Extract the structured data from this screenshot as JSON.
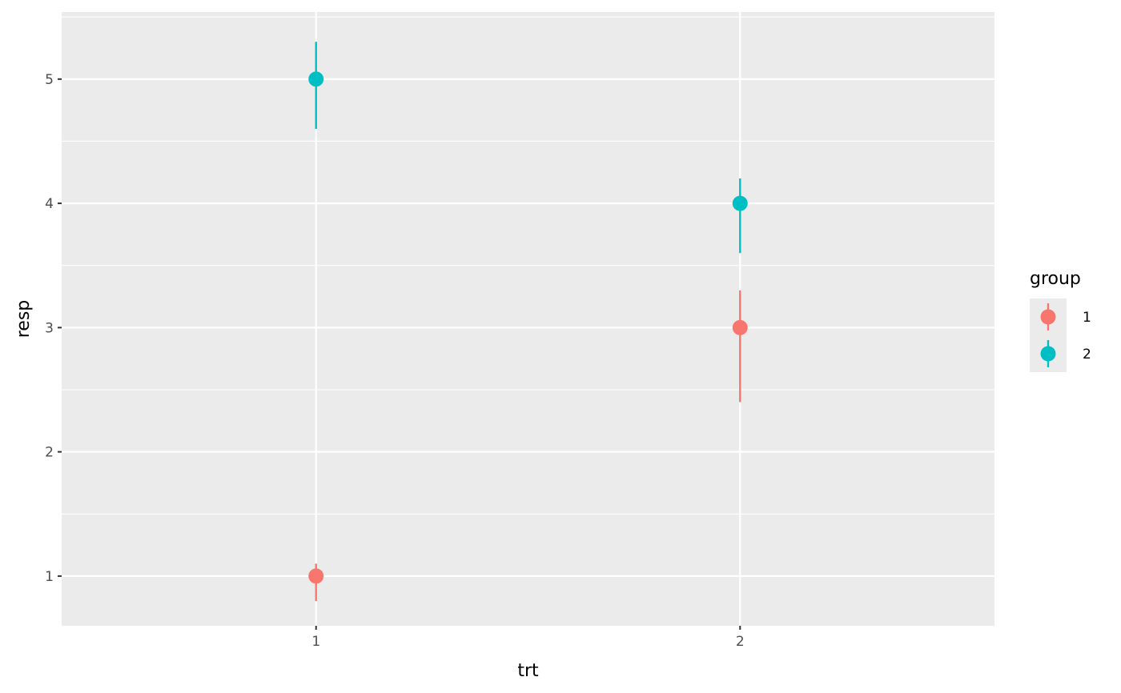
{
  "chart_data": {
    "type": "pointrange",
    "xlabel": "trt",
    "ylabel": "resp",
    "x_categories": [
      "1",
      "2"
    ],
    "xlim": [
      0.4,
      2.6
    ],
    "ylim": [
      0.6,
      5.54
    ],
    "y_ticks": [
      1,
      2,
      3,
      4,
      5
    ],
    "y_tick_labels": [
      "1",
      "2",
      "3",
      "4",
      "5"
    ],
    "grid": true,
    "background": "#EBEBEB",
    "legend": {
      "title": "group",
      "position": "right",
      "items": [
        {
          "label": "1",
          "color": "#F8766D"
        },
        {
          "label": "2",
          "color": "#00BFC4"
        }
      ]
    },
    "series": [
      {
        "name": "1",
        "color": "#F8766D",
        "points": [
          {
            "x": "1",
            "y": 1,
            "lower": 0.8,
            "upper": 1.1
          },
          {
            "x": "2",
            "y": 3,
            "lower": 2.4,
            "upper": 3.3
          }
        ]
      },
      {
        "name": "2",
        "color": "#00BFC4",
        "points": [
          {
            "x": "1",
            "y": 5,
            "lower": 4.6,
            "upper": 5.3
          },
          {
            "x": "2",
            "y": 4,
            "lower": 3.6,
            "upper": 4.2
          }
        ]
      }
    ]
  }
}
